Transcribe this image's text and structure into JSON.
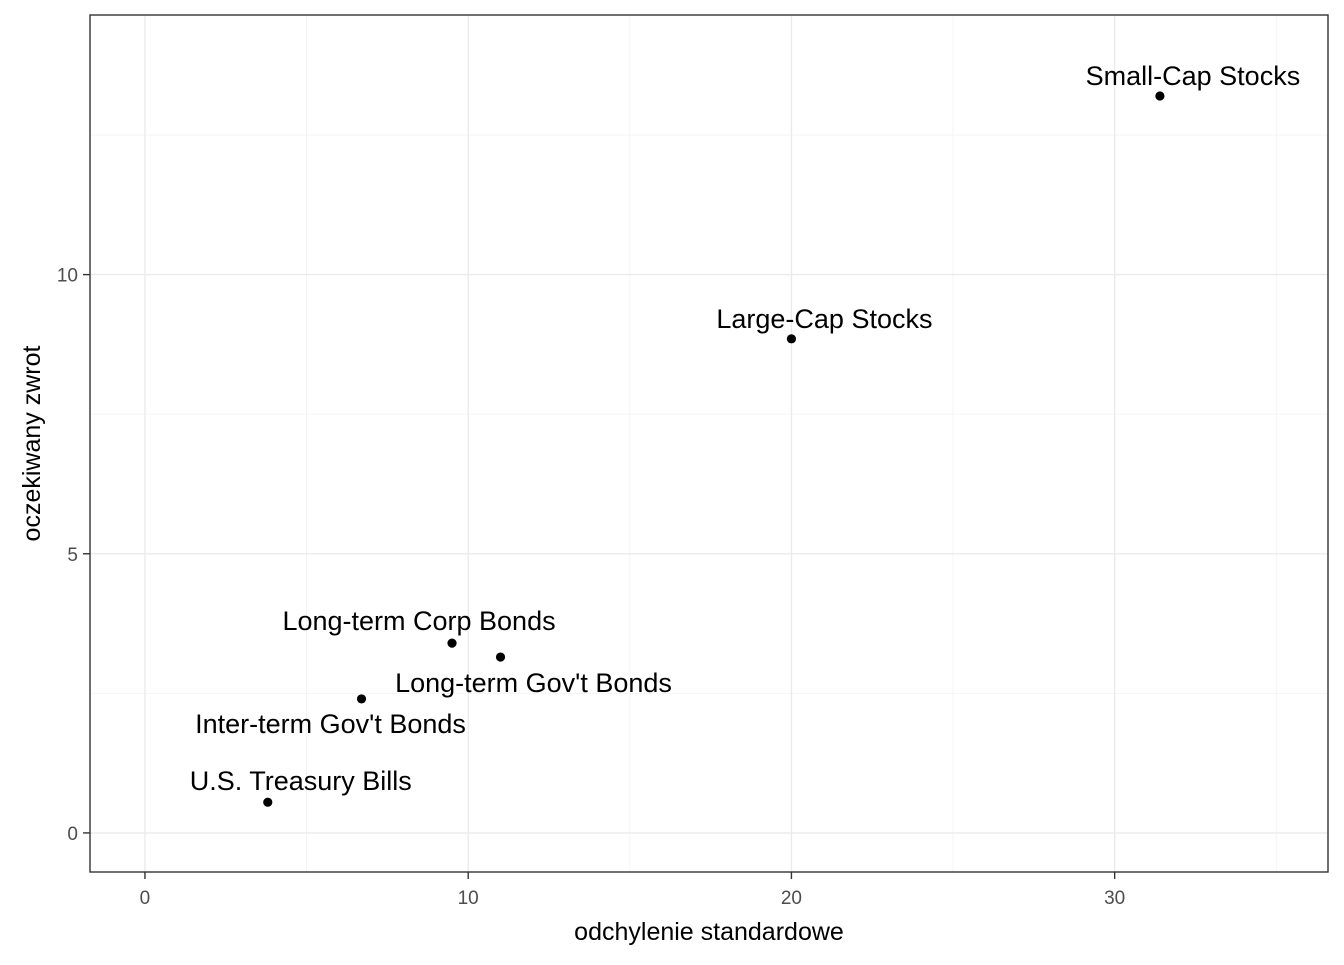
{
  "chart_data": {
    "type": "scatter",
    "title": "",
    "xlabel": "odchylenie standardowe",
    "ylabel": "oczekiwany zwrot",
    "xlim": [
      -1.7,
      36.6
    ],
    "ylim": [
      -0.7,
      14.65
    ],
    "x_ticks": [
      0,
      10,
      20,
      30
    ],
    "y_ticks": [
      0,
      5,
      10
    ],
    "x_tick_labels": [
      "0",
      "10",
      "20",
      "30"
    ],
    "y_tick_labels": [
      "0",
      "5",
      "10"
    ],
    "grid": true,
    "legend": "none",
    "point_color": "#000000",
    "points": [
      {
        "label": "Small-Cap Stocks",
        "x": 31.4,
        "y": 13.2
      },
      {
        "label": "Large-Cap Stocks",
        "x": 20.0,
        "y": 8.85
      },
      {
        "label": "Long-term Corp Bonds",
        "x": 9.5,
        "y": 3.4
      },
      {
        "label": "Long-term Gov't Bonds",
        "x": 11.0,
        "y": 3.15
      },
      {
        "label": "Inter-term Gov't Bonds",
        "x": 6.7,
        "y": 2.4
      },
      {
        "label": "U.S. Treasury Bills",
        "x": 3.8,
        "y": 0.55
      }
    ]
  }
}
